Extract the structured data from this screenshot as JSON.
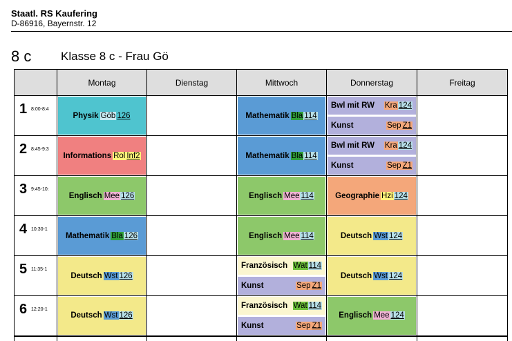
{
  "header": {
    "school_name": "Staatl. RS Kaufering",
    "school_address": "D-86916, Bayernstr. 12",
    "class_code": "8 c",
    "class_title": "Klasse 8 c - Frau Gö"
  },
  "days": [
    "Montag",
    "Dienstag",
    "Mittwoch",
    "Donnerstag",
    "Freitag"
  ],
  "periods": [
    {
      "num": "1",
      "time": "8:00-8:4"
    },
    {
      "num": "2",
      "time": "8:45-9:3"
    },
    {
      "num": "3",
      "time": "9:45-10:"
    },
    {
      "num": "4",
      "time": "10:30-1"
    },
    {
      "num": "5",
      "time": "11:35-1"
    },
    {
      "num": "6",
      "time": "12:20-1"
    }
  ],
  "colors": {
    "physik": "#4fc4cf",
    "informatik": "#f08080",
    "englisch": "#8dc86a",
    "mathematik": "#5a9bd5",
    "deutsch": "#f3e98a",
    "franzoesisch": "#fbf6d0",
    "kunst": "#b2b0dc",
    "bwl": "#b2b0dc",
    "geographie": "#f4a77a",
    "tag_goeb": "#c8eaf2",
    "tag_bla": "#2f9e3a",
    "tag_mee": "#f0b3d4",
    "tag_wst": "#5a9bd5",
    "tag_wat": "#6bbf3a",
    "tag_sep": "#f4a77a",
    "tag_kra": "#f4a77a",
    "tag_rol": "#fff37a",
    "tag_hzi": "#fff37a",
    "room_126": "#b7dfe8",
    "room_114": "#b7dfe8",
    "room_124": "#b7dfe8",
    "room_z1": "#f4a77a",
    "room_inf2": "#fff37a"
  },
  "lessons": {
    "p1_mo": {
      "subject": "Physik",
      "teacher": "Göb",
      "room": "126"
    },
    "p1_mi": {
      "subject": "Mathematik",
      "teacher": "Bla",
      "room": "114"
    },
    "p1_do_a": {
      "subject": "Bwl mit RW",
      "teacher": "Kra",
      "room": "124"
    },
    "p1_do_b": {
      "subject": "Kunst",
      "teacher": "Sep",
      "room": "Z1"
    },
    "p2_mo": {
      "subject": "Informations",
      "teacher": "Rol",
      "room": "Inf2"
    },
    "p2_mi": {
      "subject": "Mathematik",
      "teacher": "Bla",
      "room": "114"
    },
    "p2_do_a": {
      "subject": "Bwl mit RW",
      "teacher": "Kra",
      "room": "124"
    },
    "p2_do_b": {
      "subject": "Kunst",
      "teacher": "Sep",
      "room": "Z1"
    },
    "p3_mo": {
      "subject": "Englisch",
      "teacher": "Mee",
      "room": "126"
    },
    "p3_mi": {
      "subject": "Englisch",
      "teacher": "Mee",
      "room": "114"
    },
    "p3_do": {
      "subject": "Geographie",
      "teacher": "Hzi",
      "room": "124"
    },
    "p4_mo": {
      "subject": "Mathematik",
      "teacher": "Bla",
      "room": "126"
    },
    "p4_mi": {
      "subject": "Englisch",
      "teacher": "Mee",
      "room": "114"
    },
    "p4_do": {
      "subject": "Deutsch",
      "teacher": "Wst",
      "room": "124"
    },
    "p5_mo": {
      "subject": "Deutsch",
      "teacher": "Wst",
      "room": "126"
    },
    "p5_mi_a": {
      "subject": "Französisch",
      "teacher": "Wat",
      "room": "114"
    },
    "p5_mi_b": {
      "subject": "Kunst",
      "teacher": "Sep",
      "room": "Z1"
    },
    "p5_do": {
      "subject": "Deutsch",
      "teacher": "Wst",
      "room": "124"
    },
    "p6_mo": {
      "subject": "Deutsch",
      "teacher": "Wst",
      "room": "126"
    },
    "p6_mi_a": {
      "subject": "Französisch",
      "teacher": "Wat",
      "room": "114"
    },
    "p6_mi_b": {
      "subject": "Kunst",
      "teacher": "Sep",
      "room": "Z1"
    },
    "p6_do": {
      "subject": "Englisch",
      "teacher": "Mee",
      "room": "124"
    }
  }
}
